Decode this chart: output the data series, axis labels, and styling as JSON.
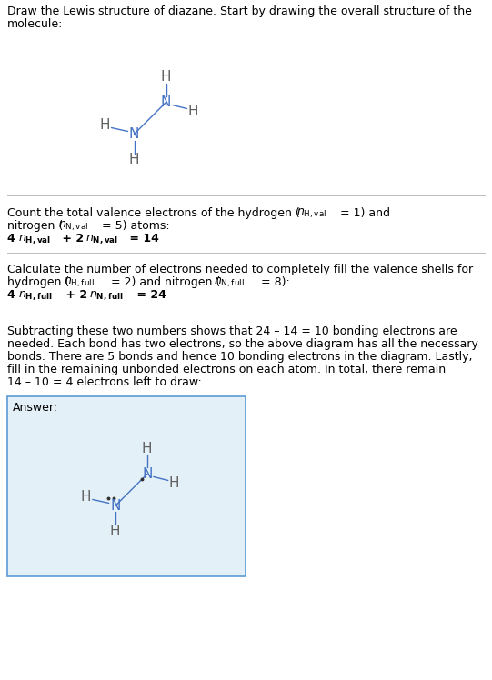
{
  "bg_color": "#ffffff",
  "answer_bg_color": "#e4f0f8",
  "answer_border_color": "#5b9bd5",
  "N_color": "#4472c4",
  "H_color": "#606060",
  "bond_color": "#4472c4",
  "text_color": "#000000",
  "line_color": "#bbbbbb",
  "font_size": 9.0,
  "title_line1": "Draw the Lewis structure of diazane. Start by drawing the overall structure of the",
  "title_line2": "molecule:",
  "s1_line1": "Count the total valence electrons of the hydrogen (",
  "s1_line1b": ") and",
  "s1_line2a": "nitrogen (",
  "s1_line2b": " = 5) atoms:",
  "s1_line3a": "4 ",
  "s1_line3b": " + 2 ",
  "s1_line3c": " = 14",
  "s2_line1": "Calculate the number of electrons needed to completely fill the valence shells for",
  "s2_line2a": "hydrogen (",
  "s2_line2b": " = 2) and nitrogen (",
  "s2_line2c": " = 8):",
  "s2_line3a": "4 ",
  "s2_line3b": " + 2 ",
  "s2_line3c": " = 24",
  "s3_line1": "Subtracting these two numbers shows that 24 – 14 = 10 bonding electrons are",
  "s3_line2": "needed. Each bond has two electrons, so the above diagram has all the necessary",
  "s3_line3": "bonds. There are 5 bonds and hence 10 bonding electrons in the diagram. Lastly,",
  "s3_line4": "fill in the remaining unbonded electrons on each atom. In total, there remain",
  "s3_line5": "14 – 10 = 4 electrons left to draw:",
  "answer_label": "Answer:"
}
